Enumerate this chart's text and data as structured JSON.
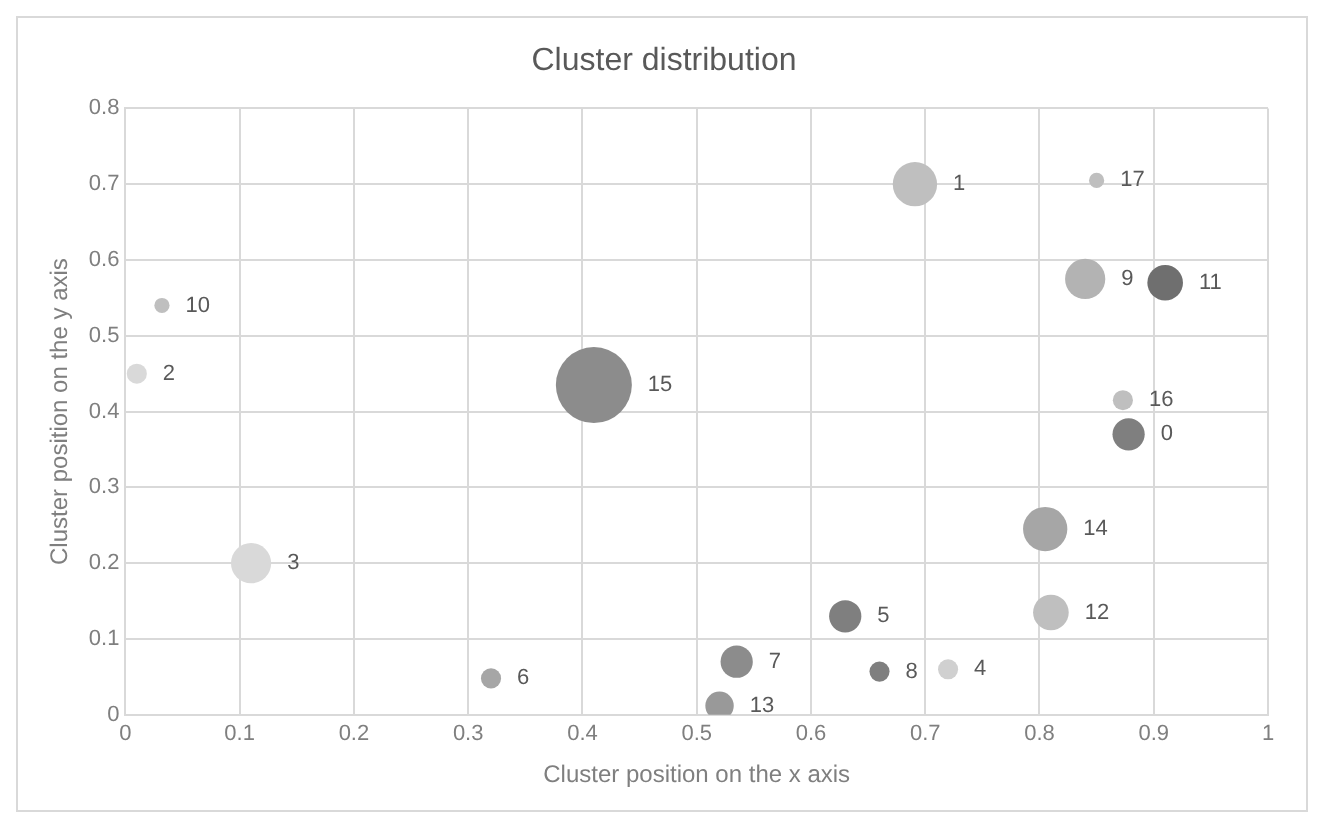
{
  "chart_data": {
    "type": "bubble",
    "title": "Cluster distribution",
    "xlabel": "Cluster position on the x axis",
    "ylabel": "Cluster position on the y axis",
    "xlim": [
      0,
      1
    ],
    "xticks": [
      0,
      0.1,
      0.2,
      0.3,
      0.4,
      0.5,
      0.6,
      0.7,
      0.8,
      0.9,
      1
    ],
    "ylim": [
      0,
      0.8
    ],
    "yticks": [
      0,
      0.1,
      0.2,
      0.3,
      0.4,
      0.5,
      0.6,
      0.7,
      0.8
    ],
    "grid": true,
    "legend": false,
    "series": [
      {
        "name": "0",
        "color": "#7f7f7f",
        "x": [
          0.878
        ],
        "values": [
          0.37
        ],
        "sizes": [
          0.18
        ]
      },
      {
        "name": "1",
        "color": "#bfbfbf",
        "x": [
          0.691
        ],
        "values": [
          0.7
        ],
        "sizes": [
          0.34
        ]
      },
      {
        "name": "2",
        "color": "#d9d9d9",
        "x": [
          0.01
        ],
        "values": [
          0.45
        ],
        "sizes": [
          0.07
        ]
      },
      {
        "name": "3",
        "color": "#d9d9d9",
        "x": [
          0.11
        ],
        "values": [
          0.2
        ],
        "sizes": [
          0.28
        ]
      },
      {
        "name": "4",
        "color": "#d0d0d0",
        "x": [
          0.72
        ],
        "values": [
          0.06
        ],
        "sizes": [
          0.07
        ]
      },
      {
        "name": "5",
        "color": "#7f7f7f",
        "x": [
          0.63
        ],
        "values": [
          0.13
        ],
        "sizes": [
          0.18
        ]
      },
      {
        "name": "6",
        "color": "#a6a6a6",
        "x": [
          0.32
        ],
        "values": [
          0.048
        ],
        "sizes": [
          0.07
        ]
      },
      {
        "name": "7",
        "color": "#8c8c8c",
        "x": [
          0.535
        ],
        "values": [
          0.07
        ],
        "sizes": [
          0.18
        ]
      },
      {
        "name": "8",
        "color": "#7f7f7f",
        "x": [
          0.66
        ],
        "values": [
          0.057
        ],
        "sizes": [
          0.07
        ]
      },
      {
        "name": "9",
        "color": "#b3b3b3",
        "x": [
          0.84
        ],
        "values": [
          0.575
        ],
        "sizes": [
          0.28
        ]
      },
      {
        "name": "10",
        "color": "#bfbfbf",
        "x": [
          0.032
        ],
        "values": [
          0.54
        ],
        "sizes": [
          0.04
        ]
      },
      {
        "name": "11",
        "color": "#6f6f6f",
        "x": [
          0.91
        ],
        "values": [
          0.57
        ],
        "sizes": [
          0.22
        ]
      },
      {
        "name": "12",
        "color": "#bfbfbf",
        "x": [
          0.81
        ],
        "values": [
          0.135
        ],
        "sizes": [
          0.22
        ]
      },
      {
        "name": "13",
        "color": "#999999",
        "x": [
          0.52
        ],
        "values": [
          0.012
        ],
        "sizes": [
          0.14
        ]
      },
      {
        "name": "14",
        "color": "#a6a6a6",
        "x": [
          0.805
        ],
        "values": [
          0.245
        ],
        "sizes": [
          0.34
        ]
      },
      {
        "name": "15",
        "color": "#8c8c8c",
        "x": [
          0.41
        ],
        "values": [
          0.435
        ],
        "sizes": [
          1
        ]
      },
      {
        "name": "16",
        "color": "#bfbfbf",
        "x": [
          0.873
        ],
        "values": [
          0.415
        ],
        "sizes": [
          0.07
        ]
      },
      {
        "name": "17",
        "color": "#bfbfbf",
        "x": [
          0.85
        ],
        "values": [
          0.705
        ],
        "sizes": [
          0.04
        ]
      }
    ]
  }
}
